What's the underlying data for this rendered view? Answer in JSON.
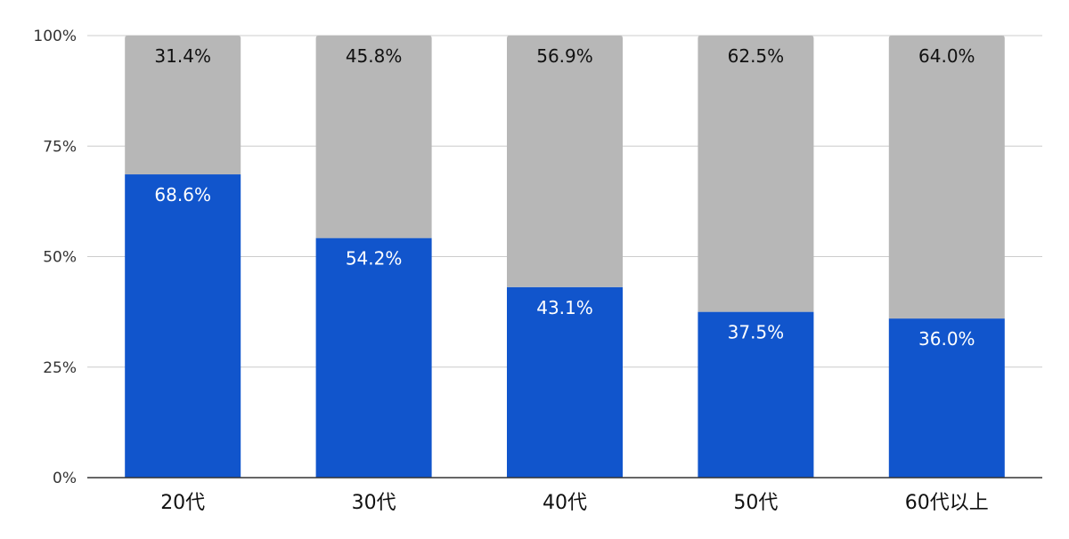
{
  "chart_data": {
    "type": "bar",
    "stacked": true,
    "categories": [
      "20代",
      "30代",
      "40代",
      "50代",
      "60代以上"
    ],
    "series": [
      {
        "values": [
          68.6,
          54.2,
          43.1,
          37.5,
          36.0
        ],
        "labels": [
          "68.6%",
          "54.2%",
          "43.1%",
          "37.5%",
          "36.0%"
        ],
        "color": "#1155cc",
        "label_color": "#ffffff"
      },
      {
        "values": [
          31.4,
          45.8,
          56.9,
          62.5,
          64.0
        ],
        "labels": [
          "31.4%",
          "45.8%",
          "56.9%",
          "62.5%",
          "64.0%"
        ],
        "color": "#b7b7b7",
        "label_color": "#111111"
      }
    ],
    "yticks": [
      "0%",
      "25%",
      "50%",
      "75%",
      "100%"
    ],
    "ytick_values": [
      0,
      25,
      50,
      75,
      100
    ],
    "ylim": [
      0,
      100
    ],
    "grid": true,
    "title": "",
    "xlabel": "",
    "ylabel": ""
  }
}
